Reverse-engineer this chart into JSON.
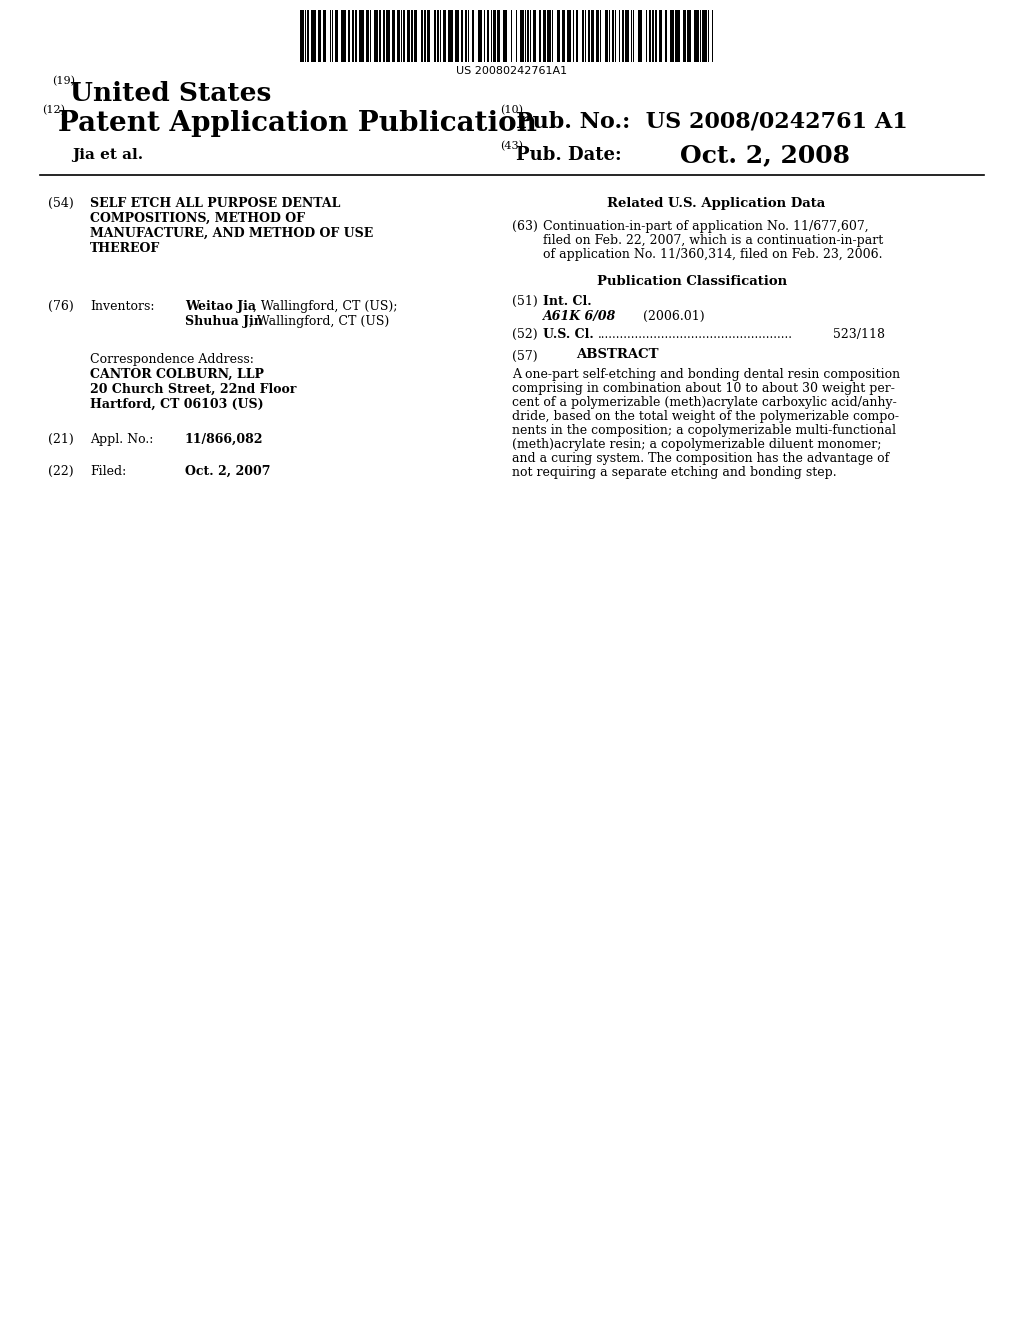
{
  "background_color": "#ffffff",
  "barcode_text": "US 20080242761A1",
  "header_19": "(19)",
  "header_19_text": "United States",
  "header_12": "(12)",
  "header_12_text": "Patent Application Publication",
  "header_10_small": "(10)",
  "header_10_pub_label": "Pub. No.:",
  "header_10_pub_value": "US 2008/0242761 A1",
  "header_43_small": "(43)",
  "header_43_label": "Pub. Date:",
  "header_43_value": "Oct. 2, 2008",
  "inventor_line": "Jia et al.",
  "field_54_num": "(54)",
  "field_54_lines": [
    "SELF ETCH ALL PURPOSE DENTAL",
    "COMPOSITIONS, METHOD OF",
    "MANUFACTURE, AND METHOD OF USE",
    "THEREOF"
  ],
  "field_76_num": "(76)",
  "field_76_label": "Inventors:",
  "field_76_line1_bold": "Weitao Jia",
  "field_76_line1_rest": ", Wallingford, CT (US);",
  "field_76_line2_bold": "Shuhua Jin",
  "field_76_line2_rest": ", Wallingford, CT (US)",
  "correspondence_label": "Correspondence Address:",
  "correspondence_line1": "CANTOR COLBURN, LLP",
  "correspondence_line2": "20 Church Street, 22nd Floor",
  "correspondence_line3": "Hartford, CT 06103 (US)",
  "field_21_num": "(21)",
  "field_21_label": "Appl. No.:",
  "field_21_value": "11/866,082",
  "field_22_num": "(22)",
  "field_22_label": "Filed:",
  "field_22_value": "Oct. 2, 2007",
  "related_us_header": "Related U.S. Application Data",
  "field_63_num": "(63)",
  "field_63_lines": [
    "Continuation-in-part of application No. 11/677,607,",
    "filed on Feb. 22, 2007, which is a continuation-in-part",
    "of application No. 11/360,314, filed on Feb. 23, 2006."
  ],
  "pub_class_header": "Publication Classification",
  "field_51_num": "(51)",
  "field_51_label": "Int. Cl.",
  "field_51_class": "A61K 6/08",
  "field_51_year": "(2006.01)",
  "field_52_num": "(52)",
  "field_52_label": "U.S. Cl.",
  "field_52_value": "523/118",
  "field_57_num": "(57)",
  "field_57_label": "ABSTRACT",
  "field_57_lines": [
    "A one-part self-etching and bonding dental resin composition",
    "comprising in combination about 10 to about 30 weight per-",
    "cent of a polymerizable (meth)acrylate carboxylic acid/anhy-",
    "dride, based on the total weight of the polymerizable compo-",
    "nents in the composition; a copolymerizable multi-functional",
    "(meth)acrylate resin; a copolymerizable diluent monomer;",
    "and a curing system. The composition has the advantage of",
    "not requiring a separate etching and bonding step."
  ]
}
